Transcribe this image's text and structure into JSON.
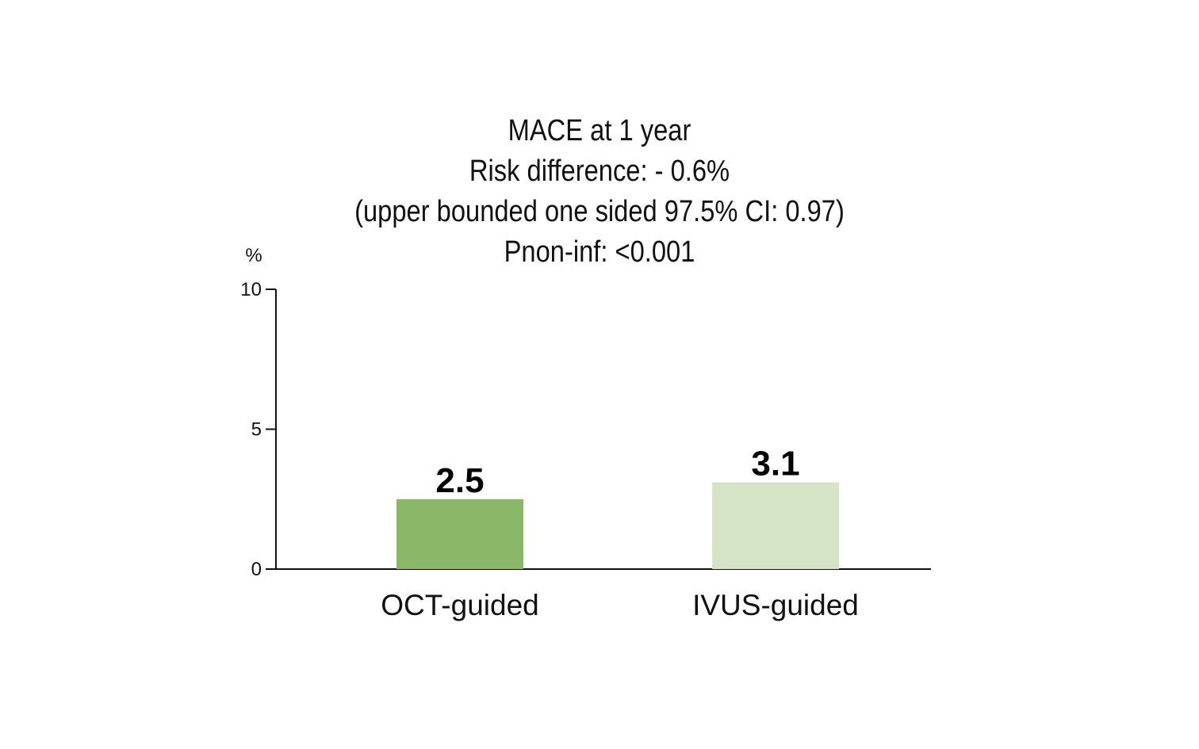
{
  "chart_data": {
    "type": "bar",
    "title": "MACE at 1 year",
    "subtitle_lines": [
      "Risk difference: - 0.6%",
      "(upper bounded one sided 97.5% CI: 0.97)",
      "Pnon-inf: <0.001"
    ],
    "ylabel": "%",
    "xlabel": "",
    "ylim": [
      0,
      10
    ],
    "yticks": [
      0,
      5,
      10
    ],
    "categories": [
      "OCT-guided",
      "IVUS-guided"
    ],
    "values": [
      2.5,
      3.1
    ],
    "value_labels": [
      "2.5",
      "3.1"
    ],
    "colors": [
      "#8ab868",
      "#d6e4c6"
    ],
    "grid": false,
    "legend": "none"
  }
}
